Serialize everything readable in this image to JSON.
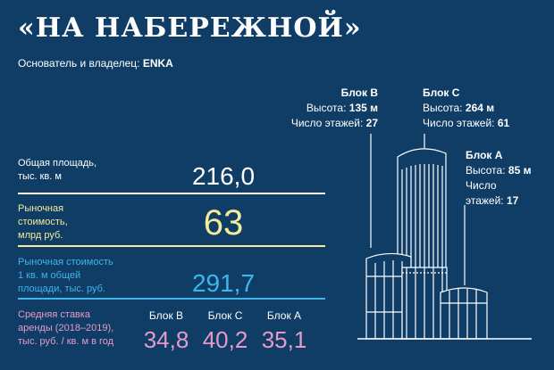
{
  "header": {
    "title": "«НА НАБЕРЕЖНОЙ»",
    "owner_label": "Основатель и владелец: ",
    "owner_value": "ENKA"
  },
  "metrics": [
    {
      "label_line1": "Общая площадь,",
      "label_line2": "тыс. кв. м",
      "label_line3": "",
      "value": "216,0",
      "color": "#ffffff"
    },
    {
      "label_line1": "Рыночная",
      "label_line2": "стоимость,",
      "label_line3": "млрд руб.",
      "value": "63",
      "color": "#f3ec9a"
    },
    {
      "label_line1": "Рыночная стоимость",
      "label_line2": "1 кв. м общей",
      "label_line3": "площади, тыс. руб.",
      "value": "291,7",
      "color": "#3fb6e8"
    }
  ],
  "rent": {
    "label_line1": "Средняя ставка",
    "label_line2": "аренды (2018–2019),",
    "label_line3": "тыс. руб. / кв. м в год",
    "color": "#e79ac8",
    "blocks": [
      {
        "name": "Блок B",
        "value": "34,8"
      },
      {
        "name": "Блок C",
        "value": "40,2"
      },
      {
        "name": "Блок A",
        "value": "35,1"
      }
    ]
  },
  "towers": {
    "b": {
      "name": "Блок B",
      "height_label": "Высота: ",
      "height_value": "135 м",
      "floors_label": "Число этажей: ",
      "floors_value": "27"
    },
    "c": {
      "name": "Блок C",
      "height_label": "Высота: ",
      "height_value": "264 м",
      "floors_label": "Число этажей: ",
      "floors_value": "61"
    },
    "a": {
      "name": "Блок A",
      "height_label": "Высота: ",
      "height_value": "85 м",
      "floors_label_line1": "Число",
      "floors_label_line2": "этажей: ",
      "floors_value": "17"
    }
  }
}
